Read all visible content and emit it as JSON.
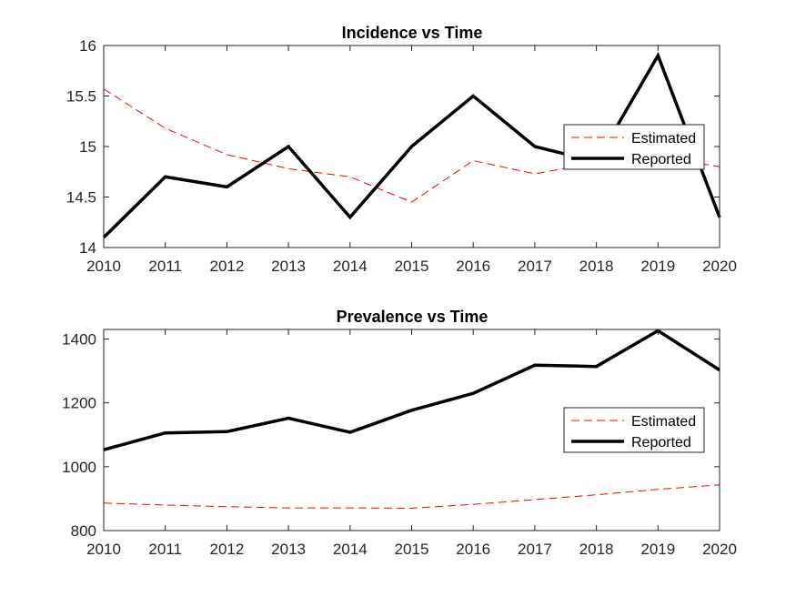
{
  "chart_data": [
    {
      "type": "line",
      "title": "Incidence vs Time",
      "xlabel": "",
      "ylabel": "",
      "x": [
        2010,
        2011,
        2012,
        2013,
        2014,
        2015,
        2016,
        2017,
        2018,
        2019,
        2020
      ],
      "xlim": [
        2010,
        2020
      ],
      "ylim": [
        14,
        16
      ],
      "xticks": [
        "2010",
        "2011",
        "2012",
        "2013",
        "2014",
        "2015",
        "2016",
        "2017",
        "2018",
        "2019",
        "2020"
      ],
      "yticks": [
        "14",
        "14.5",
        "15",
        "15.5",
        "16"
      ],
      "grid": false,
      "legend_position": "right",
      "series": [
        {
          "name": "Estimated",
          "style": "dashed",
          "color": "#ff0000",
          "values": [
            15.57,
            15.18,
            14.92,
            14.78,
            14.7,
            14.45,
            14.86,
            14.73,
            14.84,
            14.9,
            14.8
          ]
        },
        {
          "name": "Reported",
          "style": "solid",
          "color": "#000000",
          "values": [
            14.1,
            14.7,
            14.6,
            15.0,
            14.3,
            15.0,
            15.5,
            15.0,
            14.85,
            15.9,
            14.3
          ]
        }
      ]
    },
    {
      "type": "line",
      "title": "Prevalence vs Time",
      "xlabel": "",
      "ylabel": "",
      "x": [
        2010,
        2011,
        2012,
        2013,
        2014,
        2015,
        2016,
        2017,
        2018,
        2019,
        2020
      ],
      "xlim": [
        2010,
        2020
      ],
      "ylim": [
        800,
        1430
      ],
      "xticks": [
        "2010",
        "2011",
        "2012",
        "2013",
        "2014",
        "2015",
        "2016",
        "2017",
        "2018",
        "2019",
        "2020"
      ],
      "yticks": [
        "800",
        "1000",
        "1200",
        "1400"
      ],
      "grid": false,
      "legend_position": "right",
      "series": [
        {
          "name": "Estimated",
          "style": "dashed",
          "color": "#ff0000",
          "values": [
            886,
            880,
            875,
            871,
            871,
            870,
            882,
            897,
            912,
            929,
            943
          ]
        },
        {
          "name": "Reported",
          "style": "solid",
          "color": "#000000",
          "values": [
            1053,
            1106,
            1110,
            1152,
            1108,
            1177,
            1230,
            1318,
            1314,
            1426,
            1303
          ]
        }
      ]
    }
  ]
}
